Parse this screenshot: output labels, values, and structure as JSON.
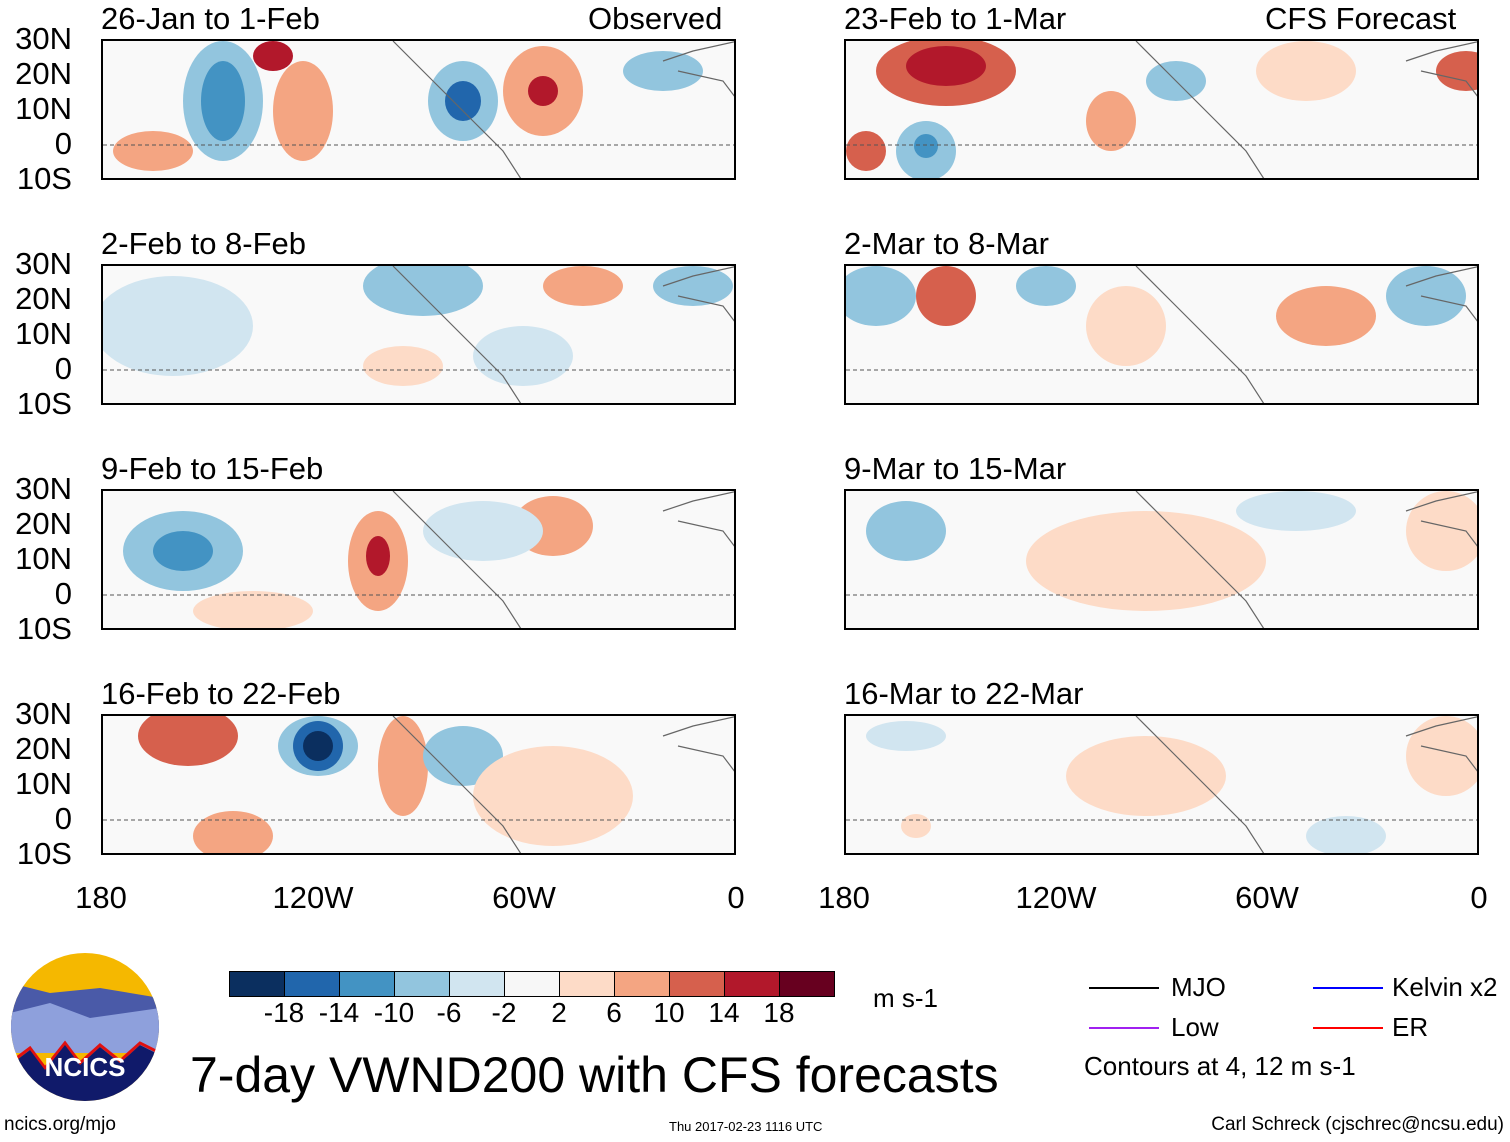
{
  "column_headers": {
    "left": "Observed",
    "right": "CFS Forecast"
  },
  "panels_left": [
    "26-Jan to 1-Feb",
    "2-Feb to 8-Feb",
    "9-Feb to 15-Feb",
    "16-Feb to 22-Feb"
  ],
  "panels_right": [
    "23-Feb to 1-Mar",
    "2-Mar to 8-Mar",
    "9-Mar to 15-Mar",
    "16-Mar to 22-Mar"
  ],
  "lat_labels": [
    "30N",
    "20N",
    "10N",
    "0",
    "10S"
  ],
  "lon_labels": [
    "180",
    "120W",
    "60W",
    "0"
  ],
  "colorbar": {
    "labels": [
      "-18",
      "-14",
      "-10",
      "-6",
      "-2",
      "2",
      "6",
      "10",
      "14",
      "18"
    ],
    "colors": [
      "#0b2f5f",
      "#2166ac",
      "#4393c3",
      "#92c5de",
      "#d1e5f0",
      "#f7f7f7",
      "#fddbc7",
      "#f4a582",
      "#d6604d",
      "#b2182b",
      "#67001f"
    ],
    "units": "m s-1"
  },
  "legend": [
    {
      "label": "MJO",
      "color": "#000000"
    },
    {
      "label": "Kelvin x2",
      "color": "#0000ff"
    },
    {
      "label": "Low",
      "color": "#a020f0"
    },
    {
      "label": "ER",
      "color": "#ff0000"
    }
  ],
  "contour_note": "Contours at 4, 12 m s-1",
  "title": "7-day VWND200 with CFS forecasts",
  "logo_text": "NCICS",
  "footer": {
    "url": "ncics.org/mjo",
    "timestamp": "Thu 2017-02-23 1116 UTC",
    "author": "Carl Schreck (cjschrec@ncsu.edu)"
  }
}
